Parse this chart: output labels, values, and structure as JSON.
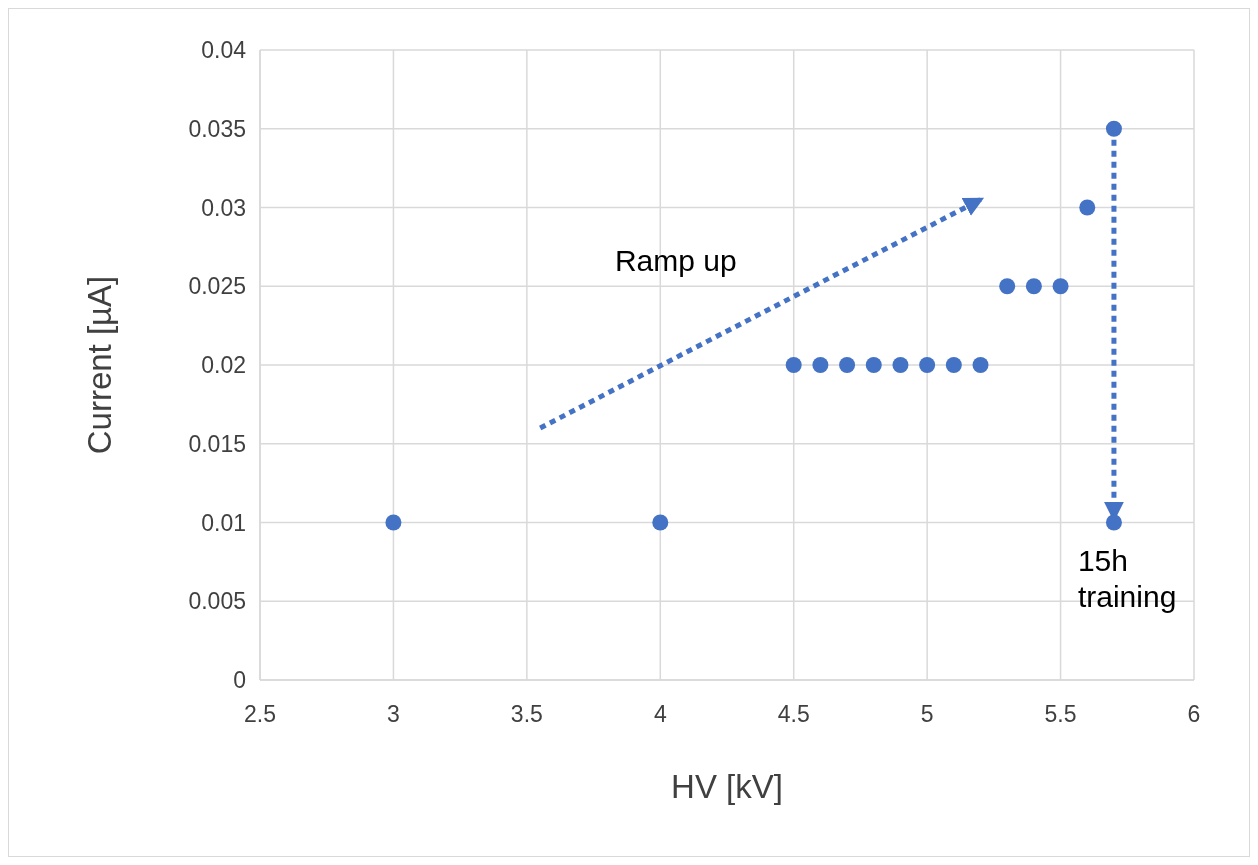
{
  "chart_data": {
    "type": "scatter",
    "xlabel": "HV [kV]",
    "ylabel": "Current [µA]",
    "x": [
      3,
      4,
      4.5,
      4.6,
      4.7,
      4.8,
      4.9,
      5,
      5.1,
      5.2,
      5.3,
      5.4,
      5.5,
      5.6,
      5.7,
      5.7
    ],
    "values": [
      0.01,
      0.01,
      0.02,
      0.02,
      0.02,
      0.02,
      0.02,
      0.02,
      0.02,
      0.02,
      0.025,
      0.025,
      0.025,
      0.03,
      0.035,
      0.01
    ],
    "color": "#4472c4",
    "marker": "circle",
    "xlim": [
      2.5,
      6
    ],
    "xticks": [
      2.5,
      3,
      3.5,
      4,
      4.5,
      5,
      5.5,
      6
    ],
    "ylim": [
      0,
      0.04
    ],
    "yticks": [
      0,
      0.005,
      0.01,
      0.015,
      0.02,
      0.025,
      0.03,
      0.035,
      0.04
    ],
    "grid": true,
    "annotations": [
      "Ramp up",
      {
        "text": "15h training",
        "x": 5.7,
        "y": 0.01
      }
    ]
  }
}
